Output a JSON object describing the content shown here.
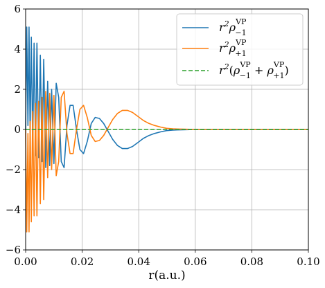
{
  "chart_data": {
    "type": "line",
    "title": "",
    "xlabel": "r(a.u.)",
    "ylabel": "",
    "xlim": [
      0.0,
      0.1
    ],
    "ylim": [
      -6,
      6
    ],
    "x_ticks": [
      "0.00",
      "0.02",
      "0.04",
      "0.06",
      "0.08",
      "0.10"
    ],
    "y_ticks": [
      "−6",
      "−4",
      "−2",
      "0",
      "2",
      "4",
      "6"
    ],
    "grid": true,
    "legend_position": "top-right",
    "series": [
      {
        "name": "r²ρ₋₁^VP",
        "color": "#1f77b4",
        "style": "solid",
        "x": [
          0.0,
          0.0004,
          0.0008,
          0.0012,
          0.0016,
          0.002,
          0.0025,
          0.003,
          0.0035,
          0.004,
          0.0046,
          0.0052,
          0.0058,
          0.0064,
          0.0071,
          0.0078,
          0.0085,
          0.0092,
          0.01,
          0.0108,
          0.0117,
          0.0126,
          0.0136,
          0.0146,
          0.0157,
          0.0168,
          0.018,
          0.0192,
          0.0205,
          0.0218,
          0.0232,
          0.0246,
          0.0261,
          0.0276,
          0.0292,
          0.0308,
          0.0325,
          0.0342,
          0.036,
          0.0378,
          0.0397,
          0.0416,
          0.0436,
          0.0456,
          0.0477,
          0.0498,
          0.052,
          0.0545,
          0.057,
          0.06,
          0.063,
          0.066,
          0.07,
          0.075,
          0.08,
          0.09,
          0.1
        ],
        "y": [
          0.0,
          5.1,
          0.2,
          5.1,
          -0.4,
          4.6,
          -0.9,
          4.3,
          -1.3,
          4.3,
          -1.4,
          3.7,
          -1.6,
          3.5,
          -1.9,
          2.4,
          -1.8,
          2.0,
          -1.7,
          2.3,
          1.6,
          -1.6,
          -1.9,
          0.2,
          1.2,
          1.2,
          0.0,
          -1.0,
          -1.2,
          -0.6,
          0.3,
          0.6,
          0.55,
          0.3,
          -0.1,
          -0.5,
          -0.8,
          -0.95,
          -0.95,
          -0.85,
          -0.65,
          -0.45,
          -0.3,
          -0.2,
          -0.12,
          -0.06,
          -0.03,
          -0.02,
          -0.01,
          0.0,
          0.0,
          0.0,
          0.0,
          0.0,
          0.0,
          0.0,
          0.0
        ]
      },
      {
        "name": "r²ρ₊₁^VP",
        "color": "#ff7f0e",
        "style": "solid",
        "x": [
          0.0,
          0.0004,
          0.0008,
          0.0012,
          0.0016,
          0.002,
          0.0025,
          0.003,
          0.0035,
          0.004,
          0.0046,
          0.0052,
          0.0058,
          0.0064,
          0.0071,
          0.0078,
          0.0085,
          0.0092,
          0.01,
          0.0108,
          0.0117,
          0.0126,
          0.0136,
          0.0146,
          0.0157,
          0.0168,
          0.018,
          0.0192,
          0.0205,
          0.0218,
          0.0232,
          0.0246,
          0.0261,
          0.0276,
          0.0292,
          0.0308,
          0.0325,
          0.0342,
          0.036,
          0.0378,
          0.0397,
          0.0416,
          0.0436,
          0.0456,
          0.0477,
          0.0498,
          0.052,
          0.0545,
          0.057,
          0.06,
          0.063,
          0.066,
          0.07,
          0.075,
          0.08,
          0.09,
          0.1
        ],
        "y": [
          0.0,
          -5.1,
          -0.2,
          -5.1,
          0.4,
          -4.6,
          0.9,
          -4.3,
          1.3,
          -4.3,
          1.4,
          -3.7,
          1.6,
          -3.5,
          1.9,
          -2.4,
          1.8,
          -2.0,
          1.7,
          -2.3,
          -1.6,
          1.6,
          1.9,
          -0.2,
          -1.2,
          -1.2,
          0.0,
          1.0,
          1.2,
          0.6,
          -0.3,
          -0.6,
          -0.55,
          -0.3,
          0.1,
          0.5,
          0.8,
          0.95,
          0.95,
          0.85,
          0.65,
          0.45,
          0.3,
          0.2,
          0.12,
          0.06,
          0.03,
          0.02,
          0.01,
          0.0,
          0.0,
          0.0,
          0.0,
          0.0,
          0.0,
          0.0,
          0.0
        ]
      },
      {
        "name": "r²(ρ₋₁^VP + ρ₊₁^VP)",
        "color": "#2ca02c",
        "style": "dashed",
        "x": [
          0.0,
          0.1
        ],
        "y": [
          0.0,
          0.0
        ]
      }
    ]
  },
  "legend": [
    {
      "base": "r",
      "sup1": "2",
      "rho": "ρ",
      "sub": "−1",
      "sup2": "VP"
    },
    {
      "base": "r",
      "sup1": "2",
      "rho": "ρ",
      "sub": "+1",
      "sup2": "VP"
    },
    {
      "base": "r",
      "sup1": "2",
      "open": "(",
      "rho": "ρ",
      "sub": "−1",
      "sup2": "VP",
      "plus": " + ",
      "rho2": "ρ",
      "sub2": "+1",
      "sup3": "VP",
      "close": ")"
    }
  ]
}
